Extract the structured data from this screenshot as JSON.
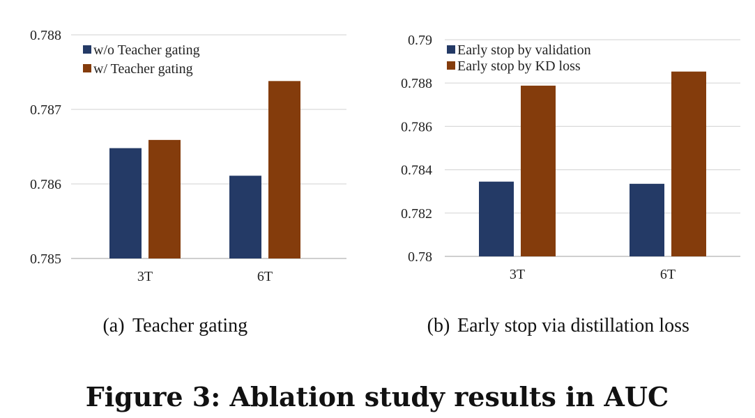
{
  "chart_data": [
    {
      "type": "bar",
      "categories": [
        "3T",
        "6T"
      ],
      "series": [
        {
          "name": "w/o Teacher gating",
          "values": [
            0.78648,
            0.78611
          ],
          "color": "#243a66"
        },
        {
          "name": "w/ Teacher gating",
          "values": [
            0.78659,
            0.78738
          ],
          "color": "#843c0c"
        }
      ],
      "ylim": [
        0.785,
        0.788
      ],
      "yticks": [
        "0.785",
        "0.786",
        "0.787",
        "0.788"
      ],
      "grid": true,
      "legend": "top-left",
      "caption_label": "(a)",
      "caption": "Teacher gating"
    },
    {
      "type": "bar",
      "categories": [
        "3T",
        "6T"
      ],
      "series": [
        {
          "name": "Early stop by validation",
          "values": [
            0.78345,
            0.78335
          ],
          "color": "#243a66"
        },
        {
          "name": "Early stop by KD loss",
          "values": [
            0.78788,
            0.78853
          ],
          "color": "#843c0c"
        }
      ],
      "ylim": [
        0.78,
        0.79
      ],
      "yticks": [
        "0.78",
        "0.782",
        "0.784",
        "0.786",
        "0.788",
        "0.79"
      ],
      "grid": true,
      "legend": "top-left",
      "caption_label": "(b)",
      "caption": "Early stop via distillation loss"
    }
  ],
  "figure_title": "Figure 3: Ablation study results in AUC"
}
